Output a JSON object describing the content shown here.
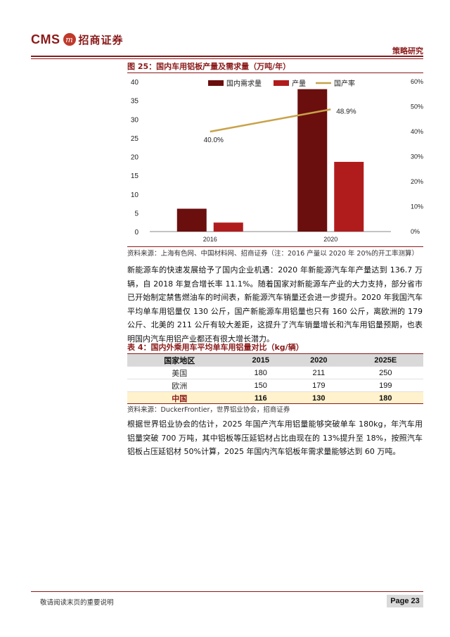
{
  "header": {
    "logo_text": "CMS",
    "logo_mark": "m",
    "company_name": "招商证券",
    "section": "策略研究"
  },
  "figure": {
    "title": "图 25：国内车用铝板产量及需求量（万吨/年）",
    "source": "资料来源：上海有色网、中国材料网、招商证券（注：2016 产量以 2020 年 20%的开工率测算）"
  },
  "chart_data": {
    "type": "bar",
    "categories": [
      "2016",
      "2020"
    ],
    "series": [
      {
        "name": "国内需求量",
        "kind": "bar",
        "axis": "left",
        "color": "#6b0e0e",
        "values": [
          6.1,
          38.0
        ]
      },
      {
        "name": "产量",
        "kind": "bar",
        "axis": "left",
        "color": "#b01c1c",
        "values": [
          2.4,
          18.6
        ]
      },
      {
        "name": "国产率",
        "kind": "line",
        "axis": "right",
        "color": "#c8a24a",
        "values": [
          0.4,
          0.489
        ],
        "labels": [
          "40.0%",
          "48.9%"
        ]
      }
    ],
    "y_left": {
      "min": 0,
      "max": 40,
      "ticks": [
        0,
        5,
        10,
        15,
        20,
        25,
        30,
        35,
        40
      ]
    },
    "y_right": {
      "min": 0,
      "max": 0.6,
      "ticks": [
        "0%",
        "10%",
        "20%",
        "30%",
        "40%",
        "50%",
        "60%"
      ]
    },
    "legend_position": "top",
    "grid": false
  },
  "paragraph1": "新能源车的快速发展给予了国内企业机遇：2020 年新能源汽车年产量达到 136.7 万辆，自 2018 年复合增长率 11.1%。随着国家对新能源车产业的大力支持，部分省市已开始制定禁售燃油车的时间表，新能源汽车销量还会进一步提升。2020 年我国汽车平均单车用铝量仅 130 公斤，国产新能源车用铝量也只有 160 公斤，离欧洲的 179 公斤、北美的 211 公斤有较大差距，这提升了汽车销量增长和汽车用铝量预期，也表明国内汽车用铝产业都还有很大增长潜力。",
  "table": {
    "title": "表 4：国内外乘用车平均单车用铝量对比（kg/辆）",
    "headers": [
      "国家地区",
      "2015",
      "2020",
      "2025E"
    ],
    "rows": [
      {
        "country": "美国",
        "v2015": "180",
        "v2020": "211",
        "v2025": "250"
      },
      {
        "country": "欧洲",
        "v2015": "150",
        "v2020": "179",
        "v2025": "199"
      },
      {
        "country": "中国",
        "v2015": "116",
        "v2020": "130",
        "v2025": "180"
      }
    ],
    "source": "资料来源：DuckerFrontier，世界铝业协会，招商证券"
  },
  "paragraph2": "根据世界铝业协会的估计，2025 年国产汽车用铝量能够突破单车 180kg，年汽车用铝量突破 700 万吨，其中铝板等压延铝材占比由现在的 13%提升至 18%，按照汽车铝板占压延铝材 50%计算，2025 年国内汽车铝板年需求量能够达到 60 万吨。",
  "footer": {
    "disclaimer": "敬请阅读末页的重要说明",
    "page": "Page 23"
  }
}
